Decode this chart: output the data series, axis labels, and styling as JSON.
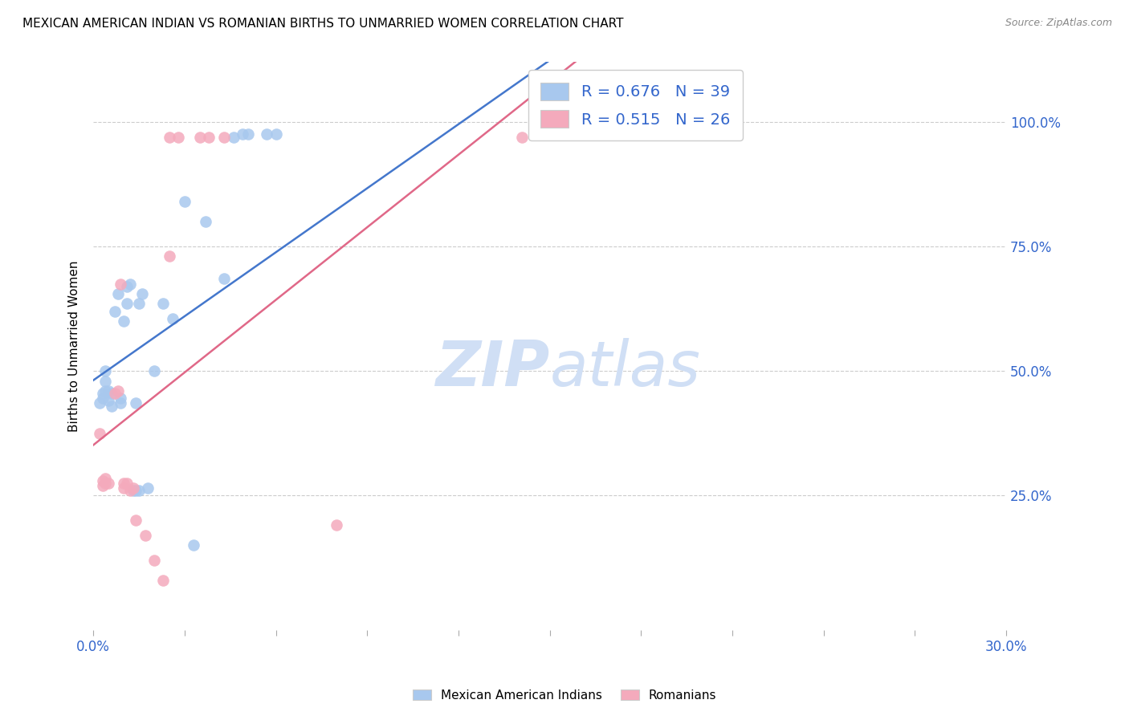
{
  "title": "MEXICAN AMERICAN INDIAN VS ROMANIAN BIRTHS TO UNMARRIED WOMEN CORRELATION CHART",
  "source": "Source: ZipAtlas.com",
  "ylabel": "Births to Unmarried Women",
  "y_tick_vals": [
    0.25,
    0.5,
    0.75,
    1.0
  ],
  "x_range": [
    0.0,
    0.3
  ],
  "y_range": [
    -0.02,
    1.12
  ],
  "blue_color": "#A8C8EE",
  "pink_color": "#F4AABC",
  "blue_line_color": "#4477CC",
  "pink_line_color": "#E06888",
  "legend_text_color": "#3366CC",
  "watermark_color": "#D0DFF5",
  "blue_R": 0.676,
  "blue_N": 39,
  "pink_R": 0.515,
  "pink_N": 26,
  "legend_labels": [
    "Mexican American Indians",
    "Romanians"
  ],
  "blue_scatter": [
    [
      0.002,
      0.435
    ],
    [
      0.003,
      0.445
    ],
    [
      0.003,
      0.455
    ],
    [
      0.004,
      0.46
    ],
    [
      0.004,
      0.48
    ],
    [
      0.004,
      0.5
    ],
    [
      0.005,
      0.44
    ],
    [
      0.005,
      0.46
    ],
    [
      0.006,
      0.43
    ],
    [
      0.006,
      0.455
    ],
    [
      0.007,
      0.62
    ],
    [
      0.008,
      0.655
    ],
    [
      0.009,
      0.435
    ],
    [
      0.009,
      0.445
    ],
    [
      0.01,
      0.6
    ],
    [
      0.011,
      0.67
    ],
    [
      0.011,
      0.635
    ],
    [
      0.012,
      0.675
    ],
    [
      0.013,
      0.26
    ],
    [
      0.014,
      0.26
    ],
    [
      0.014,
      0.435
    ],
    [
      0.015,
      0.635
    ],
    [
      0.015,
      0.26
    ],
    [
      0.016,
      0.655
    ],
    [
      0.018,
      0.265
    ],
    [
      0.02,
      0.5
    ],
    [
      0.023,
      0.635
    ],
    [
      0.026,
      0.605
    ],
    [
      0.03,
      0.84
    ],
    [
      0.033,
      0.15
    ],
    [
      0.037,
      0.8
    ],
    [
      0.043,
      0.685
    ],
    [
      0.046,
      0.97
    ],
    [
      0.049,
      0.975
    ],
    [
      0.051,
      0.975
    ],
    [
      0.057,
      0.975
    ],
    [
      0.06,
      0.975
    ],
    [
      0.155,
      1.0
    ],
    [
      0.168,
      1.0
    ]
  ],
  "pink_scatter": [
    [
      0.002,
      0.375
    ],
    [
      0.003,
      0.27
    ],
    [
      0.003,
      0.28
    ],
    [
      0.004,
      0.275
    ],
    [
      0.004,
      0.285
    ],
    [
      0.005,
      0.275
    ],
    [
      0.007,
      0.455
    ],
    [
      0.008,
      0.46
    ],
    [
      0.009,
      0.675
    ],
    [
      0.01,
      0.265
    ],
    [
      0.01,
      0.275
    ],
    [
      0.011,
      0.275
    ],
    [
      0.012,
      0.26
    ],
    [
      0.013,
      0.265
    ],
    [
      0.014,
      0.2
    ],
    [
      0.017,
      0.17
    ],
    [
      0.02,
      0.12
    ],
    [
      0.023,
      0.08
    ],
    [
      0.025,
      0.73
    ],
    [
      0.025,
      0.97
    ],
    [
      0.028,
      0.97
    ],
    [
      0.035,
      0.97
    ],
    [
      0.038,
      0.97
    ],
    [
      0.043,
      0.97
    ],
    [
      0.08,
      0.19
    ],
    [
      0.141,
      0.97
    ]
  ]
}
